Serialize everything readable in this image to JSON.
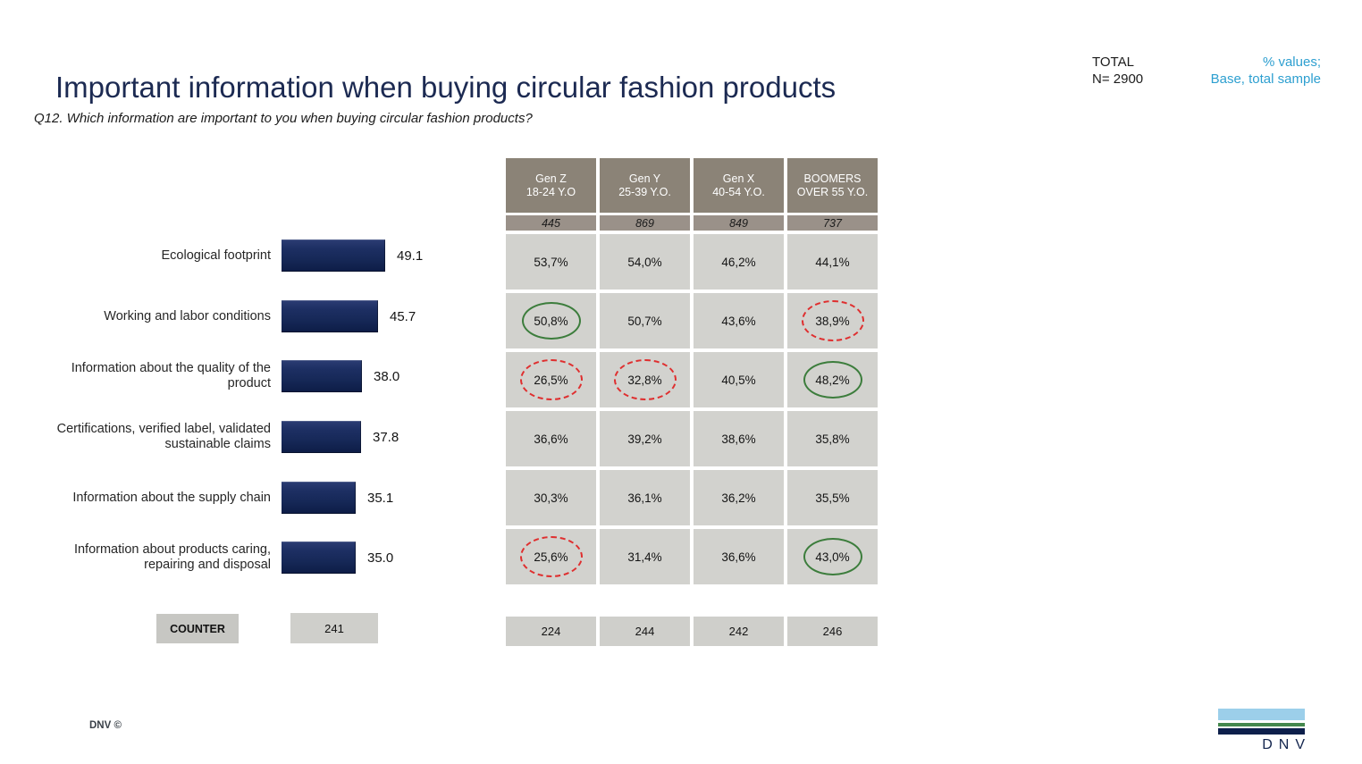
{
  "slide": {
    "title": "Important information when buying circular fashion products",
    "question": "Q12. Which information are important to you when buying circular fashion products?",
    "total_label": "TOTAL",
    "total_n": "N= 2900",
    "note_line1": "% values;",
    "note_line2": "Base, total sample",
    "footer_left": "DNV ©",
    "logo_text": "DNV",
    "colors": {
      "title_navy": "#1c2a52",
      "bar_navy": "#16285a",
      "note_teal": "#2d9fd0",
      "table_header_bg": "#8b8377",
      "table_base_bg": "#9a9189",
      "table_cell_bg": "#d2d2ce",
      "counter_bg": "#cfcfcb",
      "green_circle": "#3c7d3c",
      "red_circle": "#df2f2f"
    }
  },
  "chart_data": [
    {
      "type": "bar",
      "orientation": "horizontal",
      "title": "Important information when buying circular fashion products",
      "xlabel": "",
      "ylabel": "",
      "xlim": [
        0,
        55
      ],
      "grid": false,
      "legend_position": "none",
      "categories": [
        "Ecological footprint",
        "Working and labor conditions",
        "Information about the quality of the product",
        "Certifications, verified label, validated sustainable claims",
        "Information about the supply chain",
        "Information about products caring, repairing and disposal"
      ],
      "values": [
        49.1,
        45.7,
        38.0,
        37.8,
        35.1,
        35.0
      ],
      "value_labels": [
        "49.1",
        "45.7",
        "38.0",
        "37.8",
        "35.1",
        "35.0"
      ],
      "counter_label": "COUNTER",
      "counter_value": "241"
    },
    {
      "type": "table",
      "columns": [
        {
          "label": "Gen Z",
          "sublabel": "18-24 Y.O"
        },
        {
          "label": "Gen Y",
          "sublabel": "25-39 Y.O."
        },
        {
          "label": "Gen X",
          "sublabel": "40-54 Y.O."
        },
        {
          "label": "BOOMERS",
          "sublabel": "OVER 55 Y.O."
        }
      ],
      "base_values": [
        "445",
        "869",
        "849",
        "737"
      ],
      "rows": [
        {
          "category": "Ecological footprint",
          "cells": [
            {
              "value": "53,7%",
              "mark": "none"
            },
            {
              "value": "54,0%",
              "mark": "none"
            },
            {
              "value": "46,2%",
              "mark": "none"
            },
            {
              "value": "44,1%",
              "mark": "none"
            }
          ]
        },
        {
          "category": "Working and labor conditions",
          "cells": [
            {
              "value": "50,8%",
              "mark": "green"
            },
            {
              "value": "50,7%",
              "mark": "none"
            },
            {
              "value": "43,6%",
              "mark": "none"
            },
            {
              "value": "38,9%",
              "mark": "red"
            }
          ]
        },
        {
          "category": "Information about the quality of the product",
          "cells": [
            {
              "value": "26,5%",
              "mark": "red"
            },
            {
              "value": "32,8%",
              "mark": "red"
            },
            {
              "value": "40,5%",
              "mark": "none"
            },
            {
              "value": "48,2%",
              "mark": "green"
            }
          ]
        },
        {
          "category": "Certifications, verified label, validated sustainable claims",
          "cells": [
            {
              "value": "36,6%",
              "mark": "none"
            },
            {
              "value": "39,2%",
              "mark": "none"
            },
            {
              "value": "38,6%",
              "mark": "none"
            },
            {
              "value": "35,8%",
              "mark": "none"
            }
          ]
        },
        {
          "category": "Information about the supply chain",
          "cells": [
            {
              "value": "30,3%",
              "mark": "none"
            },
            {
              "value": "36,1%",
              "mark": "none"
            },
            {
              "value": "36,2%",
              "mark": "none"
            },
            {
              "value": "35,5%",
              "mark": "none"
            }
          ]
        },
        {
          "category": "Information about products caring, repairing and disposal",
          "cells": [
            {
              "value": "25,6%",
              "mark": "red"
            },
            {
              "value": "31,4%",
              "mark": "none"
            },
            {
              "value": "36,6%",
              "mark": "none"
            },
            {
              "value": "43,0%",
              "mark": "green"
            }
          ]
        }
      ],
      "counters": [
        "224",
        "244",
        "242",
        "246"
      ]
    }
  ]
}
